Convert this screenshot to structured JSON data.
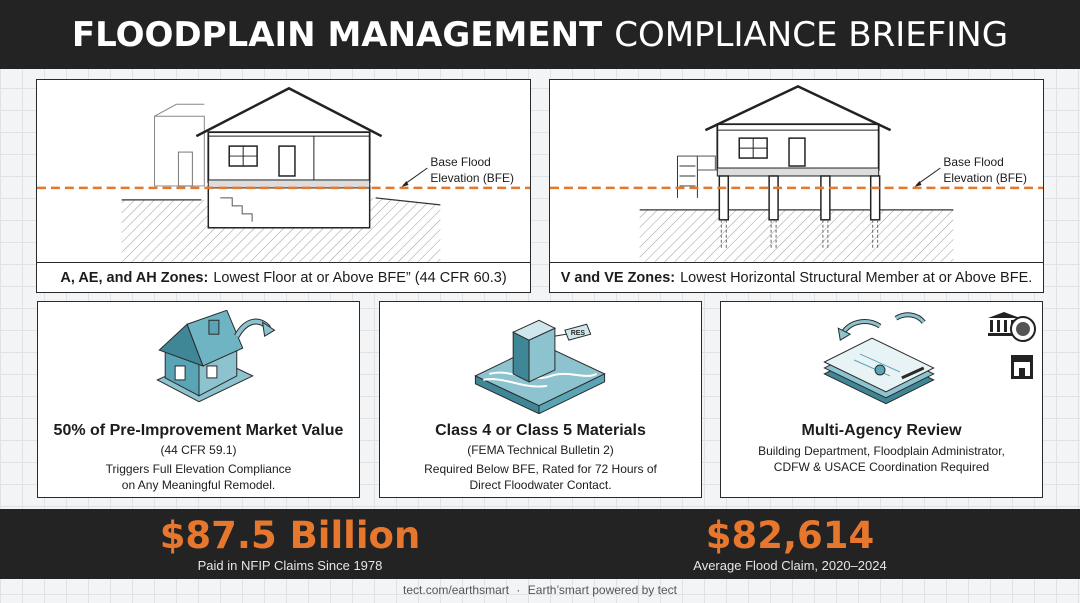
{
  "title": {
    "bold": "FLOODPLAIN MANAGEMENT",
    "light": "COMPLIANCE BRIEFING"
  },
  "top_panels": [
    {
      "bfe_label_line1": "Base Flood",
      "bfe_label_line2": "Elevation (BFE)",
      "caption_bold": "A, AE, and AH Zones:",
      "caption_text": "Lowest Floor at or Above BFE” (44 CFR 60.3)"
    },
    {
      "bfe_label_line1": "Base Flood",
      "bfe_label_line2": "Elevation (BFE)",
      "caption_bold": "V and VE Zones:",
      "caption_text": "Lowest Horizontal Structural Member at or Above BFE."
    }
  ],
  "mid_panels": [
    {
      "heading": "50% of Pre-Improvement Market Value",
      "sub": "(44 CFR 59.1)",
      "body_line1": "Triggers Full Elevation Compliance",
      "body_line2": "on Any Meaningful Remodel.",
      "icon": "house-remodel-icon"
    },
    {
      "heading": "Class 4 or Class 5 Materials",
      "sub": "(FEMA Technical Bulletin 2)",
      "body_line1": "Required Below BFE, Rated for 72 Hours of",
      "body_line2": "Direct Floodwater Contact.",
      "tag": "RES",
      "icon": "flood-resistant-material-icon"
    },
    {
      "heading": "Multi-Agency Review",
      "body_line1": "Building Department, Floodplain Administrator,",
      "body_line2": "CDFW & USACE Coordination Required",
      "icon": "permit-documents-icon"
    }
  ],
  "stats": [
    {
      "value": "$87.5 Billion",
      "label": "Paid in NFIP Claims Since 1978"
    },
    {
      "value": "$82,614",
      "label": "Average Flood Claim, 2020–2024"
    }
  ],
  "footer": {
    "left": "tect.com/earthsmart",
    "separator": "·",
    "right": "Earth’smart powered by tect"
  },
  "colors": {
    "accent": "#e8772e",
    "dark": "#232323",
    "teal": "#5aa5b5"
  }
}
